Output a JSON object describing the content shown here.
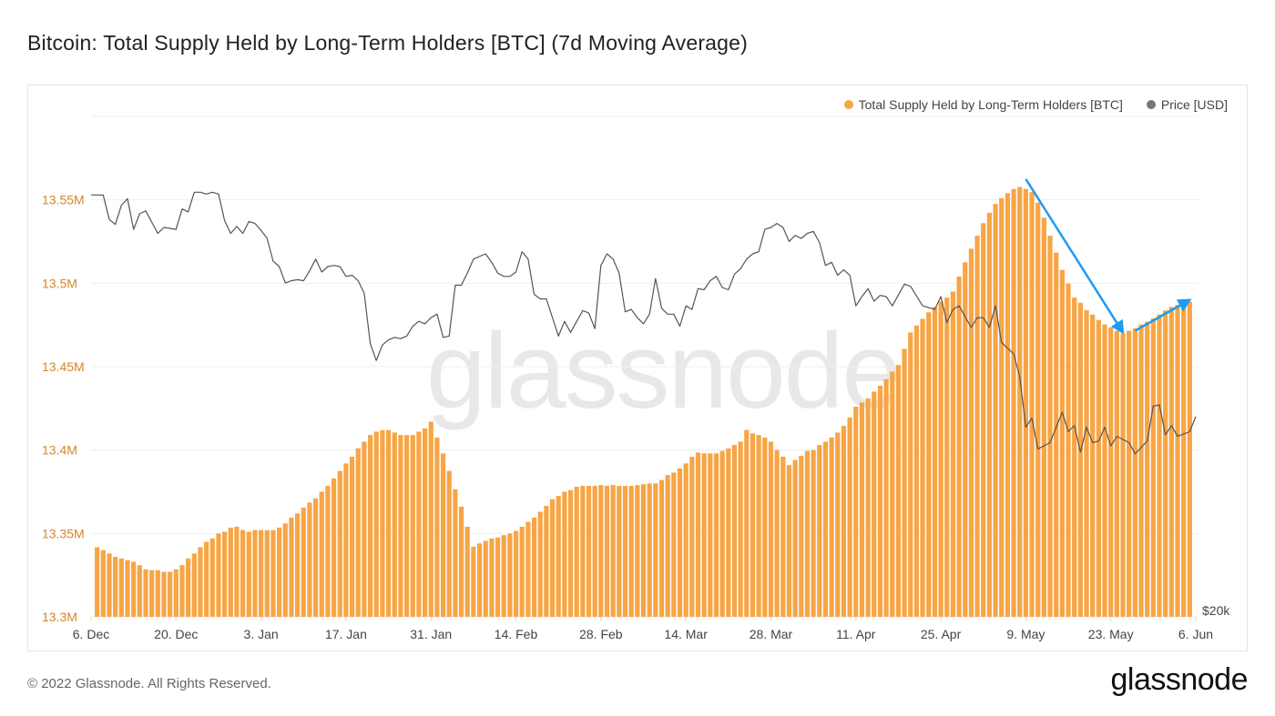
{
  "title": "Bitcoin: Total Supply Held by Long-Term Holders [BTC] (7d Moving Average)",
  "footer": "© 2022 Glassnode. All Rights Reserved.",
  "logo": "glassnode",
  "watermark": "glassnode",
  "colors": {
    "bars": "#f7a545",
    "price": "#555555",
    "axis_left": "#d4862a",
    "annotation": "#1e9bf0"
  },
  "chart_data": {
    "type": "bar",
    "title": "Bitcoin: Total Supply Held by Long-Term Holders [BTC] (7d Moving Average)",
    "legend": {
      "placement": "top-right",
      "entries": [
        "Total Supply Held by Long-Term Holders [BTC]",
        "Price [USD]"
      ]
    },
    "x_axis": {
      "start": "6 Dec",
      "days": 182,
      "ticks": [
        {
          "day": 0,
          "label": "6. Dec"
        },
        {
          "day": 14,
          "label": "20. Dec"
        },
        {
          "day": 28,
          "label": "3. Jan"
        },
        {
          "day": 42,
          "label": "17. Jan"
        },
        {
          "day": 56,
          "label": "31. Jan"
        },
        {
          "day": 70,
          "label": "14. Feb"
        },
        {
          "day": 84,
          "label": "28. Feb"
        },
        {
          "day": 98,
          "label": "14. Mar"
        },
        {
          "day": 112,
          "label": "28. Mar"
        },
        {
          "day": 126,
          "label": "11. Apr"
        },
        {
          "day": 140,
          "label": "25. Apr"
        },
        {
          "day": 154,
          "label": "9. May"
        },
        {
          "day": 168,
          "label": "23. May"
        },
        {
          "day": 182,
          "label": "6. Jun"
        }
      ]
    },
    "y_left": {
      "unit": "M BTC",
      "ylim": [
        13.3,
        13.6
      ],
      "ticks": [
        {
          "v": 13.3,
          "label": "13.3M"
        },
        {
          "v": 13.35,
          "label": "13.35M"
        },
        {
          "v": 13.4,
          "label": "13.4M"
        },
        {
          "v": 13.45,
          "label": "13.45M"
        },
        {
          "v": 13.5,
          "label": "13.5M"
        },
        {
          "v": 13.55,
          "label": "13.55M"
        }
      ]
    },
    "y_right": {
      "scale": "log",
      "ylim": [
        20000,
        59300
      ],
      "ticks": [
        {
          "v": 20000,
          "label": "$20k"
        }
      ]
    },
    "grid": true,
    "series": [
      {
        "name": "Total Supply Held by Long-Term Holders [BTC]",
        "type": "bar",
        "first_day": 1,
        "values": [
          13.3417,
          13.34,
          13.338,
          13.336,
          13.335,
          13.334,
          13.333,
          13.331,
          13.3285,
          13.328,
          13.328,
          13.327,
          13.327,
          13.3285,
          13.331,
          13.335,
          13.338,
          13.3417,
          13.345,
          13.347,
          13.35,
          13.351,
          13.3535,
          13.354,
          13.352,
          13.351,
          13.352,
          13.352,
          13.352,
          13.352,
          13.3535,
          13.356,
          13.3595,
          13.362,
          13.3655,
          13.3685,
          13.371,
          13.375,
          13.3785,
          13.383,
          13.3875,
          13.392,
          13.396,
          13.401,
          13.405,
          13.409,
          13.411,
          13.412,
          13.412,
          13.4105,
          13.409,
          13.409,
          13.409,
          13.411,
          13.413,
          13.417,
          13.4075,
          13.398,
          13.3875,
          13.3765,
          13.366,
          13.354,
          13.342,
          13.344,
          13.3455,
          13.347,
          13.3475,
          13.349,
          13.35,
          13.3515,
          13.354,
          13.357,
          13.3595,
          13.363,
          13.3665,
          13.3705,
          13.3725,
          13.375,
          13.376,
          13.378,
          13.3785,
          13.3785,
          13.3785,
          13.379,
          13.3785,
          13.379,
          13.3785,
          13.3785,
          13.3785,
          13.379,
          13.3795,
          13.38,
          13.38,
          13.382,
          13.385,
          13.3865,
          13.389,
          13.392,
          13.396,
          13.3985,
          13.398,
          13.398,
          13.398,
          13.3995,
          13.401,
          13.403,
          13.405,
          13.412,
          13.41,
          13.409,
          13.4075,
          13.405,
          13.4,
          13.396,
          13.391,
          13.394,
          13.3965,
          13.3995,
          13.4,
          13.403,
          13.405,
          13.4075,
          13.4105,
          13.4145,
          13.4195,
          13.426,
          13.4285,
          13.431,
          13.435,
          13.4385,
          13.4425,
          13.447,
          13.451,
          13.4607,
          13.4705,
          13.4747,
          13.4787,
          13.4826,
          13.4858,
          13.489,
          13.4914,
          13.495,
          13.504,
          13.5126,
          13.5207,
          13.5285,
          13.536,
          13.5423,
          13.5475,
          13.551,
          13.554,
          13.5565,
          13.5577,
          13.5565,
          13.5546,
          13.5483,
          13.5393,
          13.5285,
          13.5184,
          13.508,
          13.4998,
          13.4914,
          13.4883,
          13.4839,
          13.4812,
          13.478,
          13.4753,
          13.4736,
          13.4715,
          13.4699,
          13.4715,
          13.473,
          13.4753,
          13.477,
          13.4789,
          13.4812,
          13.4837,
          13.4858,
          13.487,
          13.4876,
          13.489
        ]
      },
      {
        "name": "Price [USD]",
        "type": "line",
        "points": [
          [
            0,
            50000
          ],
          [
            2,
            50000
          ],
          [
            3,
            47400
          ],
          [
            4,
            46900
          ],
          [
            5,
            48900
          ],
          [
            6,
            49600
          ],
          [
            7,
            46400
          ],
          [
            8,
            48000
          ],
          [
            9,
            48300
          ],
          [
            11,
            46000
          ],
          [
            12,
            46600
          ],
          [
            14,
            46400
          ],
          [
            15,
            48500
          ],
          [
            16,
            48200
          ],
          [
            17,
            50300
          ],
          [
            18,
            50300
          ],
          [
            19,
            50100
          ],
          [
            20,
            50300
          ],
          [
            21,
            50100
          ],
          [
            22,
            47300
          ],
          [
            23,
            46000
          ],
          [
            24,
            46700
          ],
          [
            25,
            46000
          ],
          [
            26,
            47200
          ],
          [
            27,
            47000
          ],
          [
            28,
            46300
          ],
          [
            29,
            45500
          ],
          [
            30,
            43300
          ],
          [
            31,
            42800
          ],
          [
            32,
            41300
          ],
          [
            33,
            41500
          ],
          [
            34,
            41600
          ],
          [
            35,
            41500
          ],
          [
            36,
            42400
          ],
          [
            37,
            43500
          ],
          [
            38,
            42300
          ],
          [
            39,
            42800
          ],
          [
            40,
            42900
          ],
          [
            41,
            42800
          ],
          [
            42,
            41900
          ],
          [
            43,
            42000
          ],
          [
            44,
            41500
          ],
          [
            45,
            40400
          ],
          [
            46,
            36200
          ],
          [
            47,
            34900
          ],
          [
            48,
            36100
          ],
          [
            49,
            36500
          ],
          [
            50,
            36700
          ],
          [
            51,
            36600
          ],
          [
            52,
            36800
          ],
          [
            53,
            37600
          ],
          [
            54,
            38000
          ],
          [
            55,
            37800
          ],
          [
            56,
            38300
          ],
          [
            57,
            38600
          ],
          [
            58,
            36700
          ],
          [
            59,
            36800
          ],
          [
            60,
            41100
          ],
          [
            61,
            41100
          ],
          [
            62,
            42200
          ],
          [
            63,
            43500
          ],
          [
            65,
            44000
          ],
          [
            66,
            43200
          ],
          [
            67,
            42200
          ],
          [
            68,
            41900
          ],
          [
            69,
            41900
          ],
          [
            70,
            42300
          ],
          [
            71,
            44200
          ],
          [
            72,
            43500
          ],
          [
            73,
            40300
          ],
          [
            74,
            39900
          ],
          [
            75,
            39900
          ],
          [
            77,
            36800
          ],
          [
            78,
            38000
          ],
          [
            79,
            37100
          ],
          [
            81,
            38900
          ],
          [
            82,
            38700
          ],
          [
            83,
            37400
          ],
          [
            84,
            42900
          ],
          [
            85,
            44000
          ],
          [
            86,
            43500
          ],
          [
            87,
            42200
          ],
          [
            88,
            38800
          ],
          [
            89,
            39000
          ],
          [
            90,
            38300
          ],
          [
            91,
            37800
          ],
          [
            92,
            38600
          ],
          [
            93,
            41700
          ],
          [
            94,
            39100
          ],
          [
            95,
            38600
          ],
          [
            96,
            38600
          ],
          [
            97,
            37600
          ],
          [
            98,
            39300
          ],
          [
            99,
            39000
          ],
          [
            100,
            40800
          ],
          [
            101,
            40700
          ],
          [
            102,
            41500
          ],
          [
            103,
            41900
          ],
          [
            104,
            40900
          ],
          [
            105,
            40700
          ],
          [
            106,
            42100
          ],
          [
            107,
            42600
          ],
          [
            108,
            43500
          ],
          [
            109,
            44000
          ],
          [
            110,
            44200
          ],
          [
            111,
            46400
          ],
          [
            112,
            46600
          ],
          [
            113,
            47000
          ],
          [
            114,
            46600
          ],
          [
            115,
            45200
          ],
          [
            116,
            45800
          ],
          [
            117,
            45500
          ],
          [
            118,
            46000
          ],
          [
            119,
            46200
          ],
          [
            120,
            45100
          ],
          [
            121,
            42900
          ],
          [
            122,
            43200
          ],
          [
            123,
            42000
          ],
          [
            124,
            42500
          ],
          [
            125,
            42000
          ],
          [
            126,
            39300
          ],
          [
            127,
            40100
          ],
          [
            128,
            40800
          ],
          [
            129,
            39700
          ],
          [
            130,
            40200
          ],
          [
            131,
            40100
          ],
          [
            132,
            39300
          ],
          [
            134,
            41200
          ],
          [
            135,
            41000
          ],
          [
            137,
            39300
          ],
          [
            139,
            39000
          ],
          [
            140,
            40100
          ],
          [
            141,
            37900
          ],
          [
            142,
            39000
          ],
          [
            143,
            39300
          ],
          [
            145,
            37500
          ],
          [
            146,
            38300
          ],
          [
            147,
            38300
          ],
          [
            148,
            37500
          ],
          [
            149,
            39300
          ],
          [
            150,
            36300
          ],
          [
            152,
            35400
          ],
          [
            153,
            33700
          ],
          [
            154,
            30200
          ],
          [
            155,
            30800
          ],
          [
            156,
            28800
          ],
          [
            158,
            29200
          ],
          [
            160,
            31200
          ],
          [
            161,
            29900
          ],
          [
            162,
            30300
          ],
          [
            163,
            28600
          ],
          [
            164,
            30200
          ],
          [
            165,
            29200
          ],
          [
            166,
            29300
          ],
          [
            167,
            30200
          ],
          [
            168,
            29000
          ],
          [
            169,
            29600
          ],
          [
            170,
            29400
          ],
          [
            171,
            29200
          ],
          [
            172,
            28500
          ],
          [
            174,
            29300
          ],
          [
            175,
            31600
          ],
          [
            176,
            31700
          ],
          [
            177,
            29700
          ],
          [
            178,
            30300
          ],
          [
            179,
            29600
          ],
          [
            181,
            29900
          ],
          [
            182,
            30900
          ]
        ]
      }
    ],
    "annotations": [
      {
        "type": "arrow",
        "from_day": 154,
        "from_value": 13.5625,
        "to_day": 170,
        "to_value": 13.4705,
        "meaning": "decline"
      },
      {
        "type": "arrow",
        "from_day": 172,
        "from_value": 13.4715,
        "to_day": 181,
        "to_value": 13.49,
        "meaning": "rise"
      }
    ]
  }
}
